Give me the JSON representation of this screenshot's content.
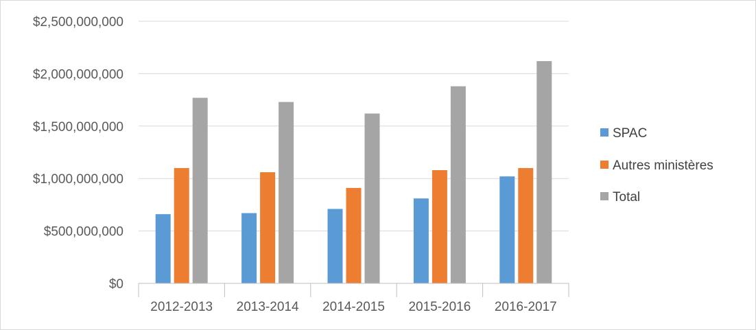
{
  "chart_data": {
    "type": "bar",
    "title": "",
    "xlabel": "",
    "ylabel": "",
    "categories": [
      "2012-2013",
      "2013-2014",
      "2014-2015",
      "2015-2016",
      "2016-2017"
    ],
    "series": [
      {
        "name": "SPAC",
        "color": "#5b9bd5",
        "values": [
          660000000,
          670000000,
          710000000,
          810000000,
          1020000000
        ]
      },
      {
        "name": "Autres ministères",
        "color": "#ed7d31",
        "values": [
          1100000000,
          1060000000,
          910000000,
          1080000000,
          1100000000
        ]
      },
      {
        "name": "Total",
        "color": "#a5a5a5",
        "values": [
          1770000000,
          1730000000,
          1620000000,
          1880000000,
          2120000000
        ]
      }
    ],
    "ylim": [
      0,
      2500000000
    ],
    "y_ticks": [
      0,
      500000000,
      1000000000,
      1500000000,
      2000000000,
      2500000000
    ],
    "y_tick_labels": [
      "$0",
      "$500,000,000",
      "$1,000,000,000",
      "$1,500,000,000",
      "$2,000,000,000",
      "$2,500,000,000"
    ],
    "grid": true,
    "legend_position": "right",
    "gridline_color": "#d9d9d9",
    "axis_color": "#bfbfbf"
  }
}
